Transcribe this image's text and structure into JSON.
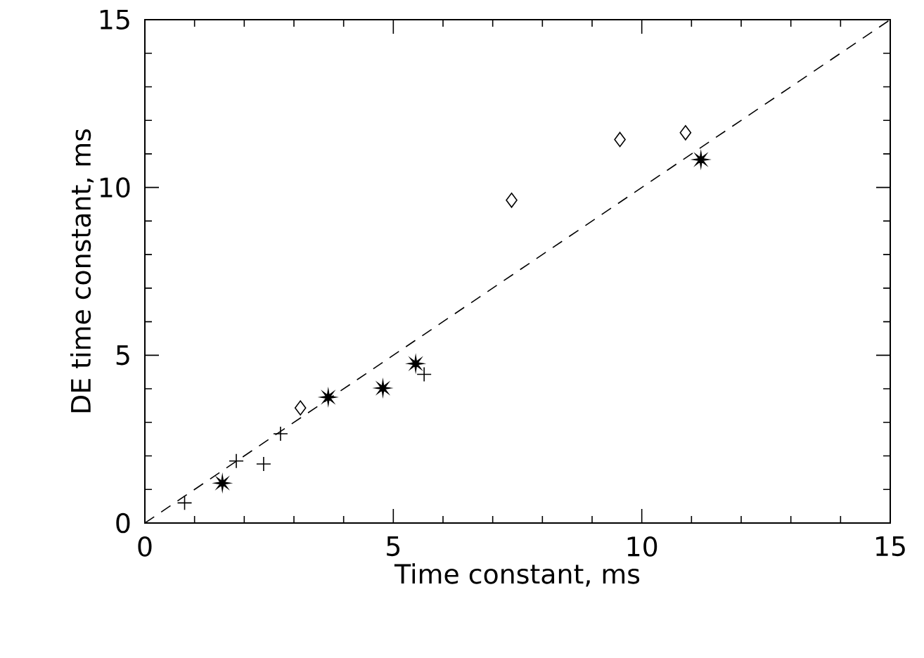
{
  "chart_data": {
    "type": "scatter",
    "xlabel": "Time constant, ms",
    "ylabel": "DE time constant, ms",
    "xlim": [
      0,
      15
    ],
    "ylim": [
      0,
      15
    ],
    "xticks": [
      0,
      5,
      10,
      15
    ],
    "yticks": [
      0,
      5,
      10,
      15
    ],
    "grid": false,
    "series": [
      {
        "marker": "cross",
        "color": "#000000",
        "x": [
          0.8,
          1.84,
          2.39,
          2.73,
          5.62
        ],
        "values": [
          0.6,
          1.85,
          1.76,
          2.66,
          4.43
        ]
      },
      {
        "marker": "star",
        "color": "#000000",
        "x": [
          1.56,
          3.69,
          4.79,
          5.45,
          11.19
        ],
        "values": [
          1.19,
          3.75,
          4.02,
          4.75,
          10.83
        ]
      },
      {
        "marker": "diamond",
        "color": "#000000",
        "x": [
          3.13,
          7.38,
          9.56,
          10.88
        ],
        "values": [
          3.43,
          9.62,
          11.43,
          11.63
        ]
      },
      {
        "type": "line",
        "marker": "none",
        "line_style": "dashed",
        "color": "#000000",
        "x": [
          0,
          15
        ],
        "values": [
          0,
          15
        ]
      }
    ]
  }
}
